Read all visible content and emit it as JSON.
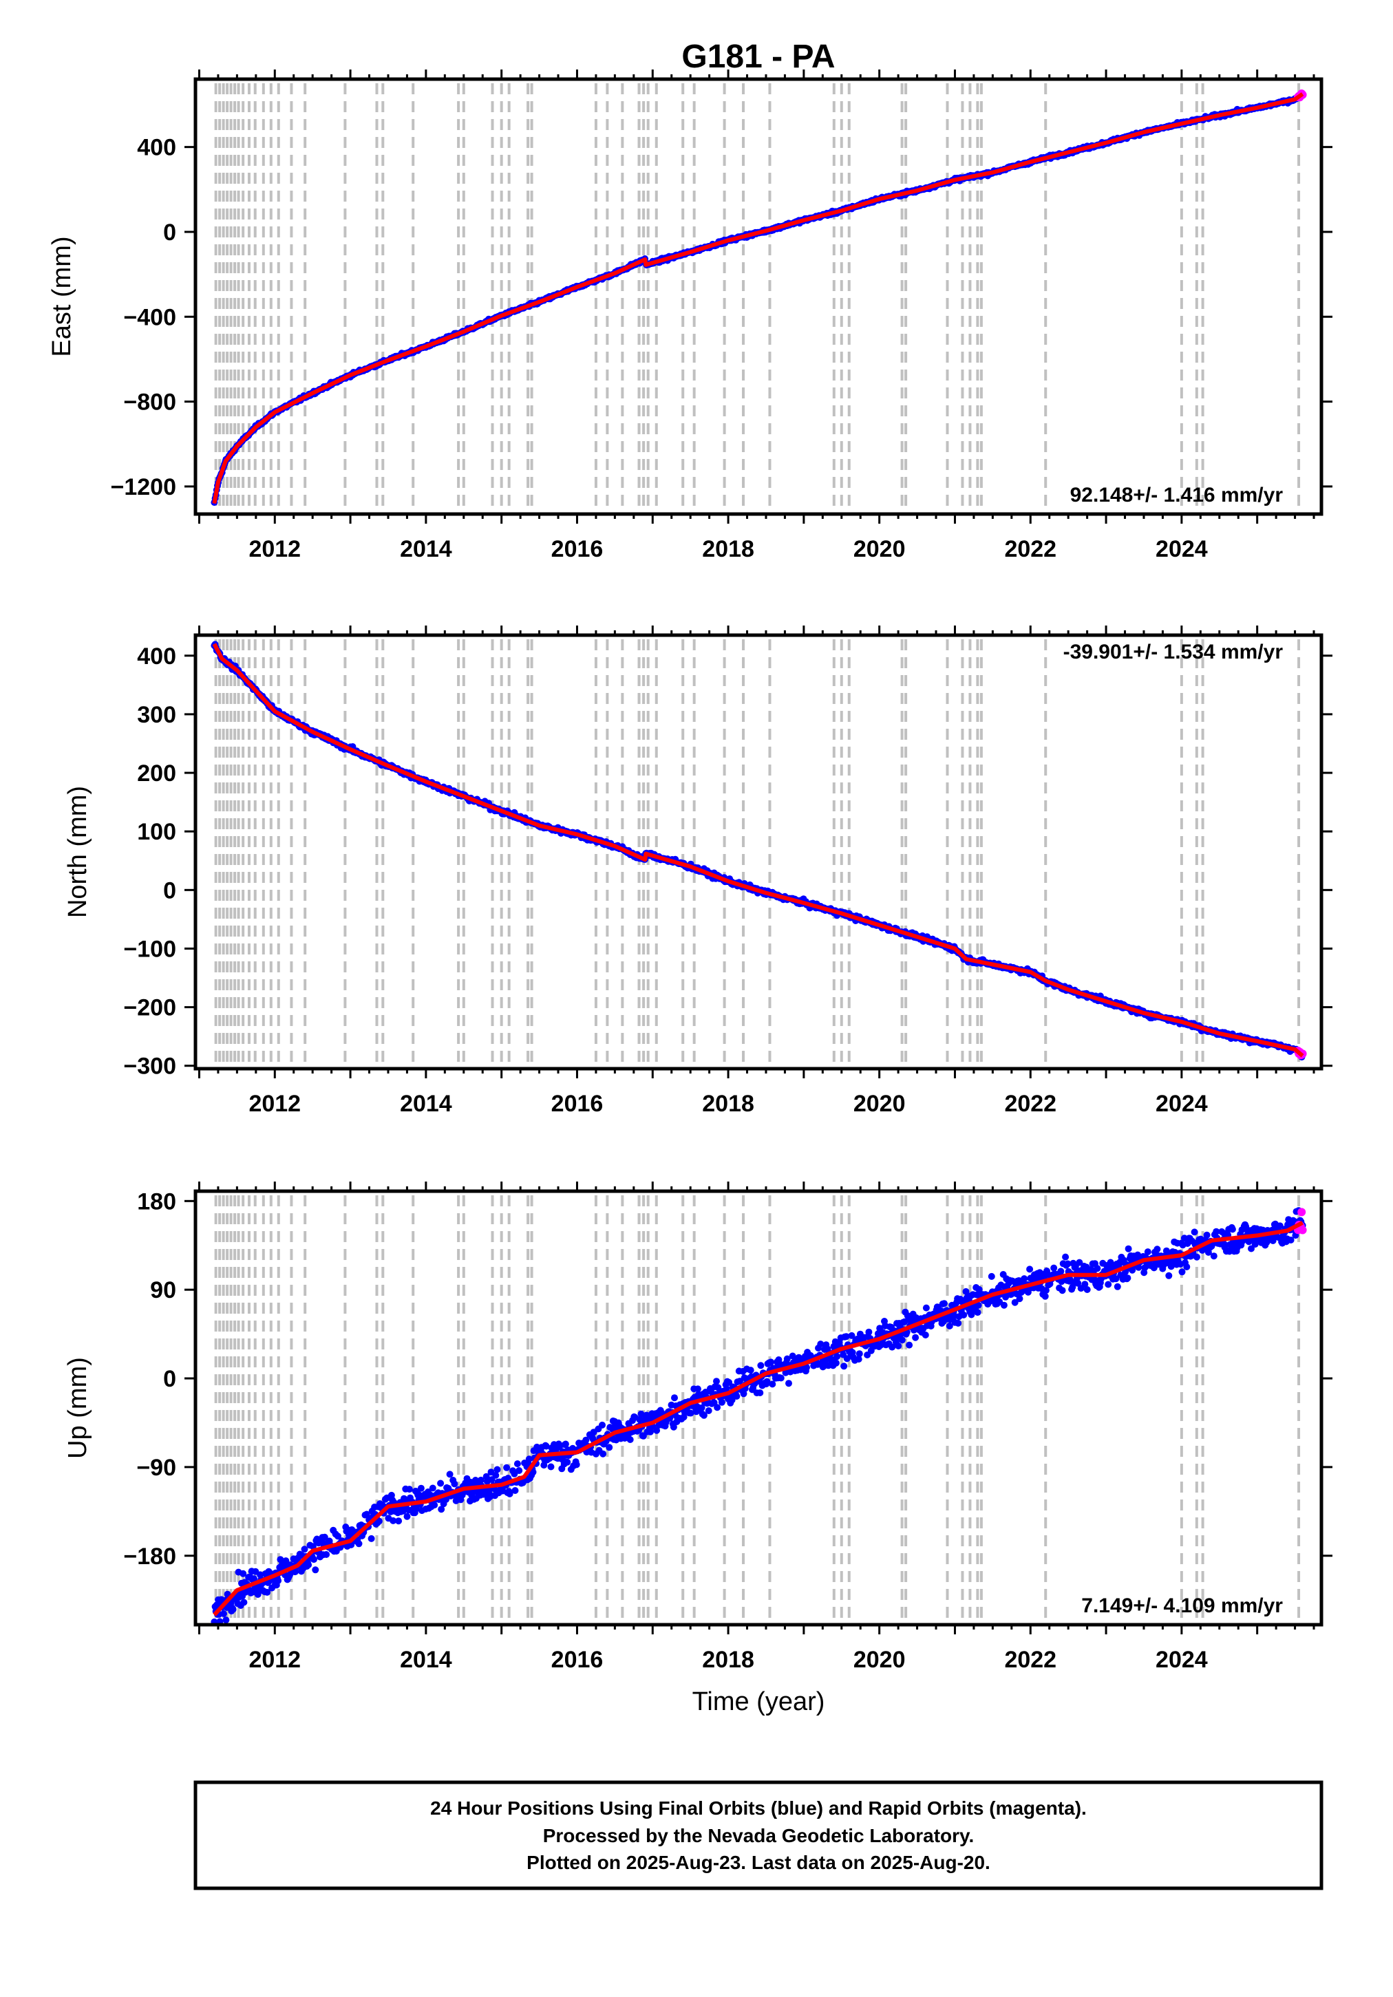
{
  "title": "G181 - PA",
  "xlabel": "Time (year)",
  "footer": {
    "lines": [
      "24 Hour Positions Using Final Orbits (blue) and Rapid Orbits (magenta).",
      "Processed by the Nevada Geodetic Laboratory.",
      "Plotted on 2025-Aug-23. Last data on 2025-Aug-20."
    ]
  },
  "colors": {
    "final_orbits": "#0000ff",
    "rapid_orbits": "#ff00ff",
    "model": "#ff0000",
    "event_lines": "#c0c0c0"
  },
  "chart_data": [
    {
      "type": "scatter",
      "ylabel": "East (mm)",
      "rate_label": "92.148+/- 1.416 mm/yr",
      "rate_position": "bottom-right",
      "xlim": [
        2010.95,
        2025.85
      ],
      "ylim": [
        -1330,
        720
      ],
      "xticks": [
        2012,
        2014,
        2016,
        2018,
        2020,
        2022,
        2024
      ],
      "xtick_labels": [
        "2012",
        "2014",
        "2016",
        "2018",
        "2020",
        "2022",
        "2024"
      ],
      "yticks": [
        -1200,
        -800,
        -400,
        0,
        400
      ],
      "ytick_labels": [
        "−1200",
        "−800",
        "−400",
        "0",
        "400"
      ],
      "x": [
        2011.2,
        2011.25,
        2011.35,
        2011.5,
        2011.75,
        2012.0,
        2012.5,
        2013.0,
        2013.5,
        2014.0,
        2014.5,
        2015.0,
        2015.5,
        2016.0,
        2016.5,
        2016.9,
        2016.91,
        2017.5,
        2018.0,
        2018.5,
        2019.0,
        2019.5,
        2020.0,
        2020.5,
        2021.0,
        2021.5,
        2022.0,
        2022.5,
        2023.0,
        2023.5,
        2024.0,
        2024.5,
        2025.0,
        2025.5,
        2025.6
      ],
      "y": [
        -1280,
        -1180,
        -1080,
        -1010,
        -920,
        -850,
        -760,
        -675,
        -605,
        -540,
        -470,
        -395,
        -330,
        -260,
        -195,
        -130,
        -155,
        -95,
        -40,
        5,
        55,
        100,
        155,
        195,
        245,
        280,
        330,
        375,
        420,
        470,
        510,
        550,
        585,
        625,
        650
      ],
      "noise_sd": 5
    },
    {
      "type": "scatter",
      "ylabel": "North (mm)",
      "rate_label": "-39.901+/- 1.534 mm/yr",
      "rate_position": "top-right",
      "xlim": [
        2010.95,
        2025.85
      ],
      "ylim": [
        -305,
        435
      ],
      "xticks": [
        2012,
        2014,
        2016,
        2018,
        2020,
        2022,
        2024
      ],
      "xtick_labels": [
        "2012",
        "2014",
        "2016",
        "2018",
        "2020",
        "2022",
        "2024"
      ],
      "yticks": [
        -300,
        -200,
        -100,
        0,
        100,
        200,
        300,
        400
      ],
      "ytick_labels": [
        "−300",
        "−200",
        "−100",
        "0",
        "100",
        "200",
        "300",
        "400"
      ],
      "x": [
        2011.2,
        2011.3,
        2011.5,
        2011.75,
        2012.0,
        2012.5,
        2013.0,
        2013.5,
        2014.0,
        2014.5,
        2015.0,
        2015.5,
        2016.0,
        2016.5,
        2016.9,
        2016.91,
        2017.5,
        2018.0,
        2018.5,
        2019.0,
        2019.5,
        2020.0,
        2020.5,
        2021.0,
        2021.15,
        2021.5,
        2022.0,
        2022.2,
        2022.5,
        2023.0,
        2023.5,
        2024.0,
        2024.5,
        2025.0,
        2025.5,
        2025.6
      ],
      "y": [
        420,
        395,
        375,
        340,
        305,
        270,
        240,
        212,
        185,
        160,
        135,
        110,
        95,
        75,
        52,
        62,
        40,
        15,
        -5,
        -22,
        -40,
        -60,
        -80,
        -100,
        -118,
        -127,
        -140,
        -155,
        -170,
        -190,
        -210,
        -225,
        -245,
        -258,
        -272,
        -283
      ],
      "noise_sd": 3
    },
    {
      "type": "scatter",
      "ylabel": "Up (mm)",
      "rate_label": "7.149+/- 4.109 mm/yr",
      "rate_position": "bottom-right",
      "xlim": [
        2010.95,
        2025.85
      ],
      "ylim": [
        -250,
        190
      ],
      "xticks": [
        2012,
        2014,
        2016,
        2018,
        2020,
        2022,
        2024
      ],
      "xtick_labels": [
        "2012",
        "2014",
        "2016",
        "2018",
        "2020",
        "2022",
        "2024"
      ],
      "yticks": [
        -180,
        -90,
        0,
        90,
        180
      ],
      "ytick_labels": [
        "−180",
        "−90",
        "0",
        "90",
        "180"
      ],
      "x": [
        2011.2,
        2011.5,
        2012.0,
        2012.3,
        2012.5,
        2013.0,
        2013.5,
        2014.0,
        2014.5,
        2015.0,
        2015.3,
        2015.5,
        2016.0,
        2016.5,
        2017.0,
        2017.5,
        2018.0,
        2018.5,
        2019.0,
        2019.5,
        2020.0,
        2020.5,
        2021.0,
        2021.5,
        2022.0,
        2022.5,
        2022.7,
        2023.0,
        2023.5,
        2024.0,
        2024.4,
        2025.0,
        2025.4,
        2025.6
      ],
      "y": [
        -240,
        -215,
        -200,
        -190,
        -175,
        -165,
        -130,
        -125,
        -112,
        -108,
        -100,
        -78,
        -75,
        -55,
        -45,
        -25,
        -15,
        5,
        15,
        30,
        40,
        55,
        70,
        85,
        95,
        105,
        105,
        105,
        120,
        125,
        140,
        145,
        150,
        158
      ],
      "noise_sd": 10
    }
  ],
  "event_lines_x": [
    2011.22,
    2011.27,
    2011.32,
    2011.37,
    2011.42,
    2011.47,
    2011.52,
    2011.58,
    2011.66,
    2011.74,
    2011.85,
    2011.95,
    2012.05,
    2012.22,
    2012.4,
    2012.93,
    2013.35,
    2013.43,
    2013.83,
    2014.43,
    2014.5,
    2014.88,
    2015.0,
    2015.1,
    2015.35,
    2015.4,
    2016.25,
    2016.4,
    2016.6,
    2016.82,
    2016.88,
    2016.94,
    2017.05,
    2017.4,
    2017.55,
    2017.95,
    2018.2,
    2018.55,
    2019.4,
    2019.5,
    2019.6,
    2020.3,
    2020.35,
    2020.9,
    2021.1,
    2021.2,
    2021.3,
    2021.35,
    2022.2,
    2024.0,
    2024.2,
    2024.28,
    2025.55
  ]
}
